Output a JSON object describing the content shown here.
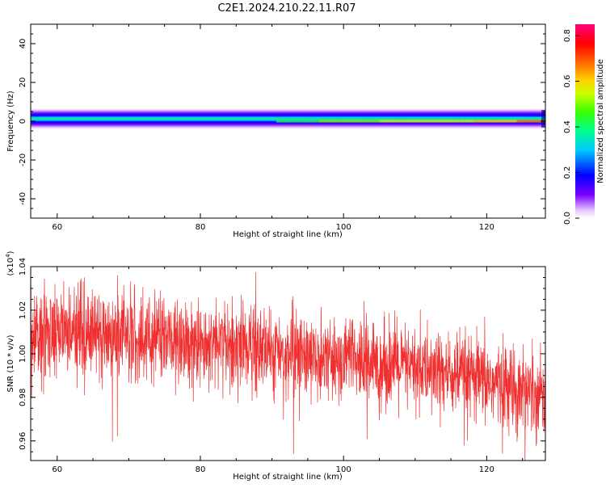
{
  "title": "C2E1.2024.210.22.11.R07",
  "chart_data": [
    {
      "type": "heatmap",
      "xlabel": "Height of straight line (km)",
      "ylabel": "Frequency (Hz)",
      "xlim": [
        56.3,
        128.2
      ],
      "ylim": [
        -50,
        50
      ],
      "x_ticks": [
        60,
        80,
        100,
        120
      ],
      "y_ticks": [
        -40,
        -20,
        0,
        20,
        40
      ],
      "colorbar": {
        "label": "Normalized spectral amplitude",
        "range": [
          0,
          0.85
        ],
        "ticks": [
          0.0,
          0.2,
          0.4,
          0.6,
          0.8
        ],
        "tick_labels": [
          "0.0",
          "0.2",
          "0.4",
          "0.6",
          "0.8"
        ]
      },
      "band": {
        "center_frequency": 0,
        "half_width_hz": 3,
        "amplitude_x": [
          57,
          70,
          85,
          95,
          100,
          110,
          118,
          124,
          128
        ],
        "amplitude_peak": [
          0.42,
          0.42,
          0.43,
          0.45,
          0.52,
          0.58,
          0.62,
          0.68,
          0.72
        ]
      }
    },
    {
      "type": "line",
      "xlabel": "Height of straight line (km)",
      "ylabel": "SNR (10 * v/v)",
      "y_multiplier": "(x10",
      "y_multiplier_exp": "4",
      "y_multiplier_close": ")",
      "xlim": [
        56.3,
        128.2
      ],
      "ylim": [
        0.951,
        1.04
      ],
      "x_ticks": [
        60,
        80,
        100,
        120
      ],
      "y_ticks": [
        0.96,
        0.98,
        1.0,
        1.02,
        1.04
      ],
      "y_tick_labels": [
        "0.96",
        "0.98",
        "1.00",
        "1.02",
        "1.04"
      ],
      "color": "#f03030",
      "trend_x": [
        56.3,
        60,
        70,
        80,
        90,
        100,
        110,
        120,
        128.2
      ],
      "trend_y": [
        1.009,
        1.01,
        1.008,
        1.005,
        1.002,
        0.997,
        0.993,
        0.987,
        0.982
      ],
      "noise_sd": 0.0095,
      "n_points": 2400
    }
  ]
}
